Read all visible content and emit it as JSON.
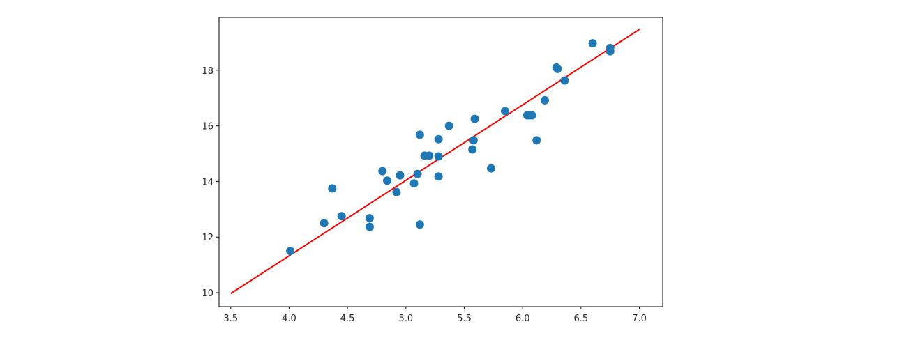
{
  "chart_data": {
    "type": "scatter",
    "title": "",
    "xlabel": "",
    "ylabel": "",
    "xlim": [
      3.4,
      7.2
    ],
    "ylim": [
      9.5,
      19.9
    ],
    "xticks": [
      3.5,
      4.0,
      4.5,
      5.0,
      5.5,
      6.0,
      6.5,
      7.0
    ],
    "xtick_labels": [
      "3.5",
      "4.0",
      "4.5",
      "5.0",
      "5.5",
      "6.0",
      "6.5",
      "7.0"
    ],
    "yticks": [
      10,
      12,
      14,
      16,
      18
    ],
    "ytick_labels": [
      "10",
      "12",
      "14",
      "16",
      "18"
    ],
    "grid": false,
    "series": [
      {
        "kind": "scatter",
        "color": "#1f77b4",
        "points": [
          [
            4.01,
            11.5
          ],
          [
            4.3,
            12.5
          ],
          [
            4.37,
            13.75
          ],
          [
            4.45,
            12.75
          ],
          [
            4.69,
            12.68
          ],
          [
            4.69,
            12.37
          ],
          [
            4.8,
            14.37
          ],
          [
            4.84,
            14.03
          ],
          [
            4.92,
            13.62
          ],
          [
            4.95,
            14.22
          ],
          [
            5.07,
            13.93
          ],
          [
            5.1,
            14.27
          ],
          [
            5.12,
            15.68
          ],
          [
            5.12,
            12.45
          ],
          [
            5.16,
            14.93
          ],
          [
            5.2,
            14.93
          ],
          [
            5.28,
            15.52
          ],
          [
            5.28,
            14.9
          ],
          [
            5.28,
            14.18
          ],
          [
            5.37,
            16.0
          ],
          [
            5.57,
            15.15
          ],
          [
            5.58,
            15.48
          ],
          [
            5.59,
            16.25
          ],
          [
            5.73,
            14.47
          ],
          [
            5.85,
            16.53
          ],
          [
            6.04,
            16.38
          ],
          [
            6.06,
            16.38
          ],
          [
            6.08,
            16.38
          ],
          [
            6.12,
            15.48
          ],
          [
            6.19,
            16.92
          ],
          [
            6.29,
            18.1
          ],
          [
            6.3,
            18.05
          ],
          [
            6.36,
            17.63
          ],
          [
            6.6,
            18.97
          ],
          [
            6.75,
            18.8
          ],
          [
            6.75,
            18.68
          ]
        ]
      },
      {
        "kind": "line",
        "color": "#ff0000",
        "points": [
          [
            3.5,
            9.97
          ],
          [
            7.0,
            19.47
          ]
        ]
      }
    ]
  }
}
